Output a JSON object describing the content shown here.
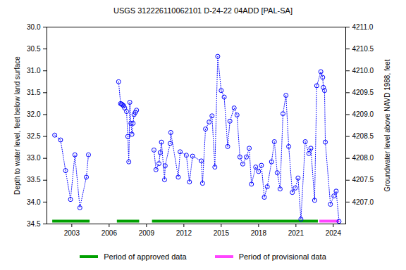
{
  "chart_data": {
    "type": "line",
    "title": "USGS 312226110062101 D-24-22 04ADD [PAL-SA]",
    "y_label": "Depth to water level, feet below land surface",
    "y2_label": "Groundwater level above NAVD 1988, feet",
    "x": [
      2001.63,
      2002.1,
      2002.5,
      2002.9,
      2003.25,
      2003.65,
      2004.17,
      2004.34,
      2005.5,
      2006.76,
      2006.92,
      2007.0,
      2007.08,
      2007.17,
      2007.25,
      2007.4,
      2007.5,
      2007.58,
      2007.66,
      2007.75,
      2007.83,
      2007.92,
      2008.0,
      2008.1,
      2008.2,
      2008.9,
      2009.6,
      2009.76,
      2010.0,
      2010.1,
      2010.2,
      2010.45,
      2010.5,
      2010.9,
      2010.95,
      2011.55,
      2011.7,
      2012.2,
      2012.45,
      2012.7,
      2013.4,
      2013.5,
      2013.74,
      2014.03,
      2014.26,
      2014.49,
      2014.72,
      2015.0,
      2015.24,
      2015.52,
      2015.7,
      2016.04,
      2016.27,
      2016.5,
      2016.73,
      2017.02,
      2017.25,
      2017.43,
      2017.77,
      2018.0,
      2018.23,
      2018.46,
      2018.7,
      2019.04,
      2019.27,
      2019.5,
      2019.73,
      2019.96,
      2020.2,
      2020.42,
      2020.71,
      2020.94,
      2021.17,
      2021.4,
      2021.75,
      2022.04,
      2022.2,
      2022.5,
      2022.67,
      2023.0,
      2023.15,
      2023.2,
      2023.3,
      2023.36,
      2023.77,
      2024.05,
      2024.23,
      2024.46
    ],
    "series": [
      {
        "name": "Depth to water level",
        "color": "#0000ff",
        "marker": "circle",
        "line_style": "dotted",
        "values": [
          32.47,
          32.58,
          33.28,
          33.94,
          32.92,
          34.13,
          33.43,
          32.92,
          null,
          31.25,
          31.75,
          31.76,
          31.78,
          31.8,
          31.85,
          31.93,
          32.5,
          33.08,
          31.72,
          32.2,
          32.45,
          32.2,
          32.0,
          31.95,
          31.9,
          null,
          32.81,
          33.26,
          33.12,
          32.87,
          32.63,
          33.49,
          33.17,
          32.66,
          32.41,
          33.43,
          32.85,
          32.93,
          33.54,
          32.95,
          33.06,
          33.57,
          32.33,
          32.17,
          32.03,
          33.2,
          30.67,
          31.45,
          31.6,
          32.73,
          32.15,
          31.85,
          32.01,
          32.97,
          33.13,
          32.97,
          32.77,
          33.59,
          33.2,
          33.3,
          33.16,
          33.89,
          33.65,
          33.08,
          32.62,
          33.33,
          33.7,
          31.98,
          31.56,
          32.73,
          33.78,
          33.68,
          33.45,
          34.39,
          32.62,
          32.89,
          32.77,
          33.96,
          31.34,
          31.02,
          31.15,
          31.38,
          31.45,
          32.63,
          34.05,
          33.86,
          33.75,
          34.44
        ]
      }
    ],
    "xlim": [
      2001.0,
      2025.0
    ],
    "xticks": [
      2003,
      2006,
      2009,
      2012,
      2015,
      2018,
      2021,
      2024
    ],
    "ylim": [
      30.0,
      34.5
    ],
    "yticks": [
      {
        "value": 30.0,
        "label": "30.0"
      },
      {
        "value": 30.5,
        "label": "30.5"
      },
      {
        "value": 31.0,
        "label": "31.0"
      },
      {
        "value": 31.5,
        "label": "31.5"
      },
      {
        "value": 32.0,
        "label": "32.0"
      },
      {
        "value": 32.5,
        "label": "32.5"
      },
      {
        "value": 33.0,
        "label": "33.0"
      },
      {
        "value": 33.5,
        "label": "33.5"
      },
      {
        "value": 34.0,
        "label": "34.0"
      },
      {
        "value": 34.5,
        "label": "34.5"
      }
    ],
    "y2lim": [
      4211.0,
      4206.5
    ],
    "y2ticks": [
      {
        "value": 4211.0,
        "label": "4211.0"
      },
      {
        "value": 4210.5,
        "label": "4210.5"
      },
      {
        "value": 4210.0,
        "label": "4210.0"
      },
      {
        "value": 4209.5,
        "label": "4209.5"
      },
      {
        "value": 4209.0,
        "label": "4209.0"
      },
      {
        "value": 4208.5,
        "label": "4208.5"
      },
      {
        "value": 4208.0,
        "label": "4208.0"
      },
      {
        "value": 4207.5,
        "label": "4207.5"
      },
      {
        "value": 4207.0,
        "label": "4207.0"
      }
    ],
    "periods": [
      {
        "name": "Period of approved data",
        "color": "#00a000",
        "ranges": [
          [
            2001.46,
            2004.46
          ],
          [
            2006.65,
            2008.44
          ],
          [
            2009.47,
            2022.79
          ]
        ]
      },
      {
        "name": "Period of provisional data",
        "color": "#ff44ff",
        "ranges": [
          [
            2022.9,
            2024.5
          ]
        ]
      }
    ],
    "grid": false
  }
}
